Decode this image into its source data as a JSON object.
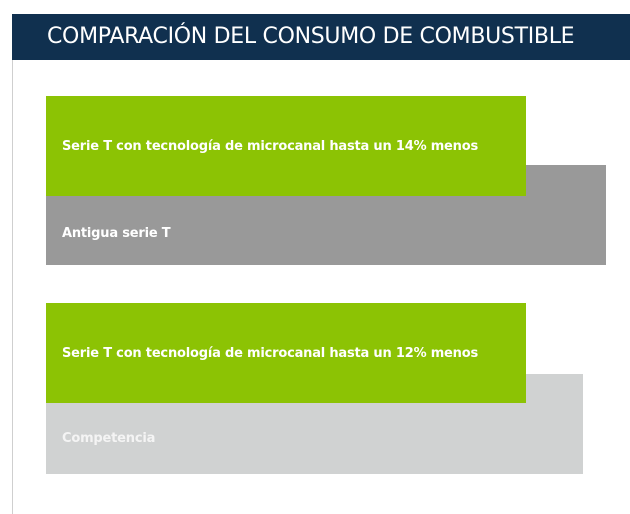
{
  "header": {
    "title": "COMPARACIÓN DEL CONSUMO DE COMBUSTIBLE"
  },
  "comparisons": [
    {
      "highlight": "Serie T con tecnología de microcanal hasta un 14% menos",
      "reference": "Antigua serie T"
    },
    {
      "highlight": "Serie T con tecnología de microcanal hasta un 12% menos",
      "reference": "Competencia"
    }
  ]
}
